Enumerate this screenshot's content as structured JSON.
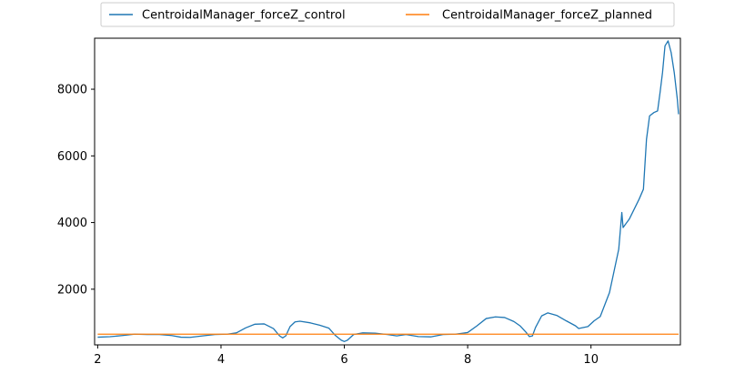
{
  "chart_data": {
    "type": "line",
    "title": "",
    "xlabel": "",
    "ylabel": "",
    "xlim": [
      1.95,
      11.45
    ],
    "ylim": [
      330,
      9530
    ],
    "x_ticks": [
      2,
      4,
      6,
      8,
      10
    ],
    "y_ticks": [
      2000,
      4000,
      6000,
      8000
    ],
    "grid": false,
    "legend_placement": "top-center, above plot",
    "series": [
      {
        "name": "CentroidalManager_forceZ_control",
        "color": "#1f77b4",
        "x": [
          2.0,
          2.2,
          2.4,
          2.6,
          2.8,
          3.0,
          3.2,
          3.35,
          3.5,
          3.7,
          3.9,
          4.1,
          4.25,
          4.4,
          4.55,
          4.7,
          4.85,
          4.95,
          5.0,
          5.05,
          5.12,
          5.2,
          5.28,
          5.45,
          5.6,
          5.75,
          5.85,
          5.95,
          6.0,
          6.05,
          6.15,
          6.3,
          6.5,
          6.7,
          6.85,
          7.0,
          7.2,
          7.4,
          7.6,
          7.8,
          8.0,
          8.15,
          8.3,
          8.45,
          8.6,
          8.75,
          8.85,
          8.95,
          9.0,
          9.05,
          9.1,
          9.2,
          9.3,
          9.45,
          9.6,
          9.75,
          9.8,
          9.95,
          10.05,
          10.15,
          10.3,
          10.45,
          10.5,
          10.52,
          10.56,
          10.62,
          10.7,
          10.78,
          10.85,
          10.9,
          10.95,
          11.02,
          11.08,
          11.12,
          11.16,
          11.2,
          11.25,
          11.3,
          11.35,
          11.4,
          11.42
        ],
        "values": [
          560,
          575,
          610,
          650,
          640,
          640,
          610,
          560,
          555,
          600,
          640,
          650,
          690,
          840,
          950,
          960,
          820,
          600,
          540,
          600,
          880,
          1020,
          1040,
          990,
          920,
          830,
          620,
          470,
          430,
          470,
          640,
          690,
          680,
          640,
          600,
          640,
          580,
          570,
          640,
          650,
          700,
          900,
          1120,
          1170,
          1150,
          1030,
          900,
          700,
          580,
          600,
          850,
          1200,
          1290,
          1210,
          1050,
          900,
          820,
          880,
          1050,
          1180,
          1900,
          3200,
          4300,
          3850,
          3950,
          4100,
          4400,
          4700,
          5000,
          6500,
          7200,
          7300,
          7350,
          7900,
          8500,
          9300,
          9450,
          9100,
          8500,
          7700,
          7250
        ]
      },
      {
        "name": "CentroidalManager_forceZ_planned",
        "color": "#ff7f0e",
        "x": [
          2.0,
          11.42
        ],
        "values": [
          650,
          650
        ]
      }
    ]
  }
}
